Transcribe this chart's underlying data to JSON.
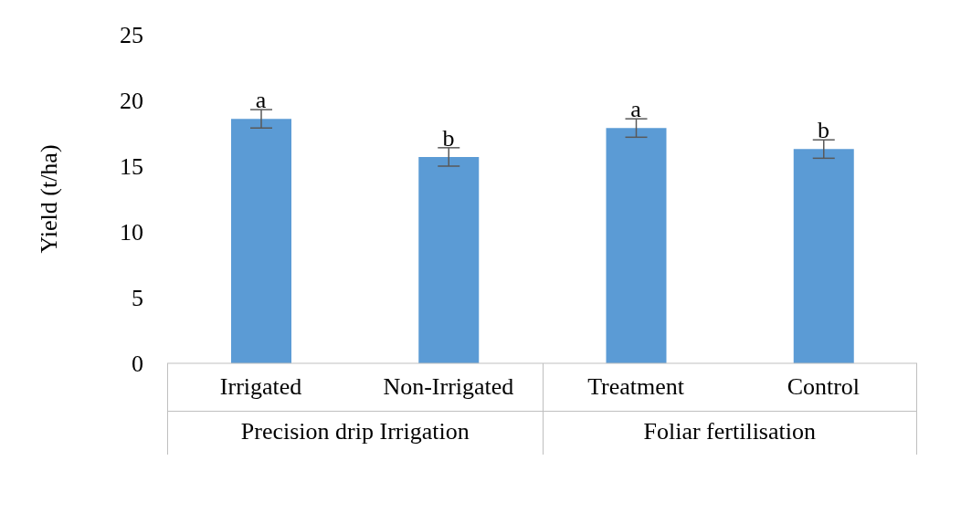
{
  "chart_data": {
    "type": "bar",
    "ylabel": "Yield (t/ha)",
    "categories": [
      "Irrigated",
      "Non-Irrigated",
      "Treatment",
      "Control"
    ],
    "values": [
      18.6,
      15.7,
      17.9,
      16.3
    ],
    "errors": [
      0.7,
      0.7,
      0.7,
      0.7
    ],
    "color": "#5b9bd5",
    "ylim": [
      0,
      25
    ],
    "yticks": [
      0,
      5,
      10,
      15,
      20,
      25
    ],
    "grid": false,
    "annotations": [
      {
        "text": "a",
        "x": "Irrigated",
        "y": 19.3
      },
      {
        "text": "b",
        "x": "Non-Irrigated",
        "y": 16.4
      },
      {
        "text": "a",
        "x": "Treatment",
        "y": 18.6
      },
      {
        "text": "b",
        "x": "Control",
        "y": 17.0
      },
      "Precision drip Irrigation",
      "Foliar fertilisation"
    ]
  }
}
